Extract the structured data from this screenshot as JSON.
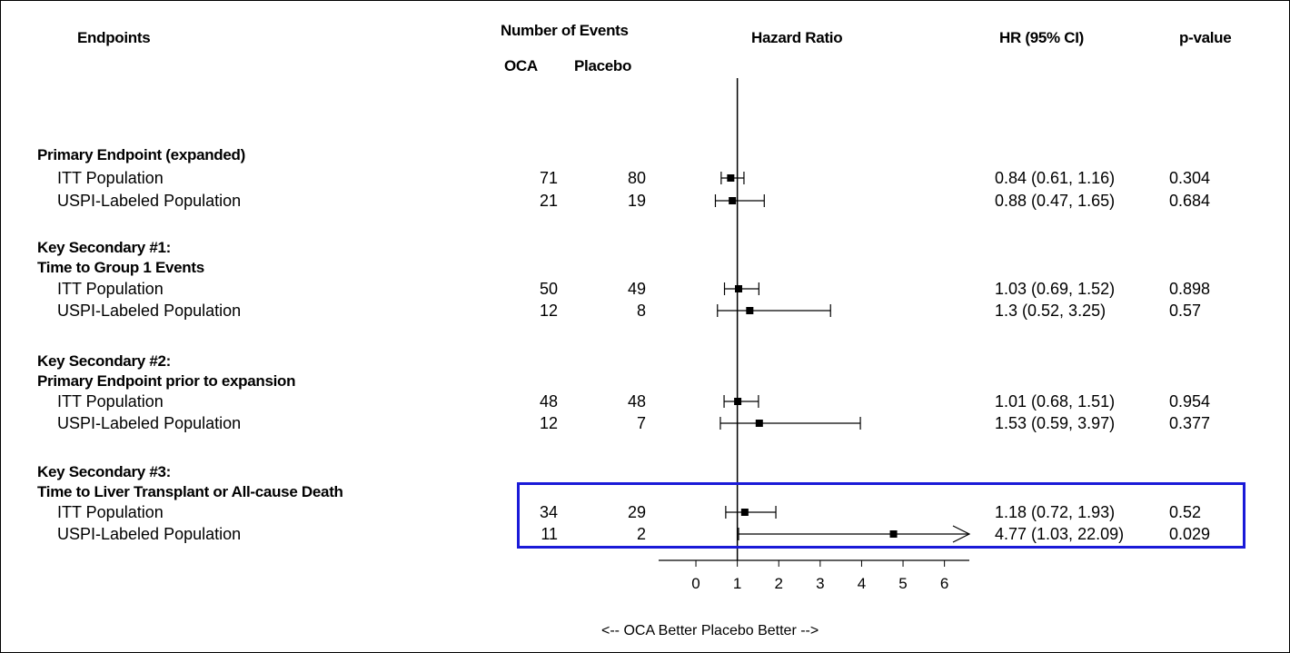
{
  "headers": {
    "endpoints": "Endpoints",
    "number_of_events": "Number of Events",
    "oca": "OCA",
    "placebo": "Placebo",
    "hazard_ratio": "Hazard Ratio",
    "hr_ci": "HR (95% CI)",
    "p_value": "p-value"
  },
  "groups": [
    {
      "title": [
        "Primary Endpoint (expanded)"
      ]
    },
    {
      "title": [
        "Key Secondary #1:",
        "Time to Group 1 Events"
      ]
    },
    {
      "title": [
        "Key Secondary #2:",
        "Primary Endpoint prior to expansion"
      ]
    },
    {
      "title": [
        "Key Secondary #3:",
        "Time to Liver Transplant or All-cause Death"
      ]
    }
  ],
  "rows": [
    {
      "label": "ITT Population",
      "oca": "71",
      "placebo": "80",
      "hr_text": "0.84 (0.61, 1.16)",
      "p": "0.304"
    },
    {
      "label": "USPI-Labeled Population",
      "oca": "21",
      "placebo": "19",
      "hr_text": "0.88 (0.47, 1.65)",
      "p": "0.684"
    },
    {
      "label": "ITT Population",
      "oca": "50",
      "placebo": "49",
      "hr_text": "1.03 (0.69, 1.52)",
      "p": "0.898"
    },
    {
      "label": "USPI-Labeled Population",
      "oca": "12",
      "placebo": "8",
      "hr_text": "1.3 (0.52, 3.25)",
      "p": "0.57"
    },
    {
      "label": "ITT Population",
      "oca": "48",
      "placebo": "48",
      "hr_text": "1.01 (0.68, 1.51)",
      "p": "0.954"
    },
    {
      "label": "USPI-Labeled Population",
      "oca": "12",
      "placebo": "7",
      "hr_text": "1.53 (0.59, 3.97)",
      "p": "0.377"
    },
    {
      "label": "ITT Population",
      "oca": "34",
      "placebo": "29",
      "hr_text": "1.18 (0.72, 1.93)",
      "p": "0.52"
    },
    {
      "label": "USPI-Labeled Population",
      "oca": "11",
      "placebo": "2",
      "hr_text": "4.77 (1.03, 22.09)",
      "p": "0.029"
    }
  ],
  "axis_footer": "<-- OCA Better   Placebo Better -->",
  "colors": {
    "highlight": "#1a1ad8",
    "ink": "#000000"
  },
  "chart_data": {
    "type": "forest",
    "title": "Hazard Ratio",
    "reference_line": 1,
    "xlim": [
      -0.9,
      6.6
    ],
    "x_ticks": [
      0,
      1,
      2,
      3,
      4,
      5,
      6
    ],
    "series": [
      {
        "name": "ITT Population",
        "hr": 0.84,
        "lo": 0.61,
        "hi": 1.16
      },
      {
        "name": "USPI-Labeled Population",
        "hr": 0.88,
        "lo": 0.47,
        "hi": 1.65
      },
      {
        "name": "ITT Population",
        "hr": 1.03,
        "lo": 0.69,
        "hi": 1.52
      },
      {
        "name": "USPI-Labeled Population",
        "hr": 1.3,
        "lo": 0.52,
        "hi": 3.25
      },
      {
        "name": "ITT Population",
        "hr": 1.01,
        "lo": 0.68,
        "hi": 1.51
      },
      {
        "name": "USPI-Labeled Population",
        "hr": 1.53,
        "lo": 0.59,
        "hi": 3.97
      },
      {
        "name": "ITT Population",
        "hr": 1.18,
        "lo": 0.72,
        "hi": 1.93
      },
      {
        "name": "USPI-Labeled Population",
        "hr": 4.77,
        "lo": 1.03,
        "hi": 22.09,
        "truncated": true
      }
    ],
    "highlighted_group": "Key Secondary #3"
  }
}
